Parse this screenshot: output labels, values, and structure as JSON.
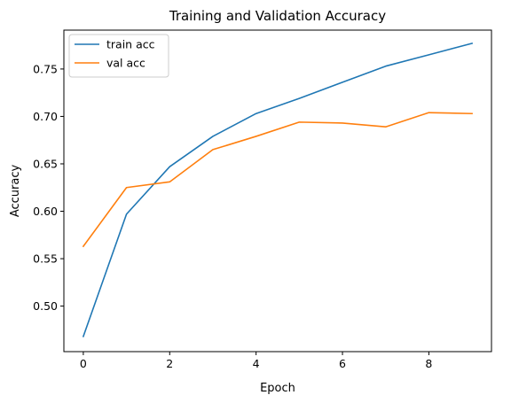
{
  "chart_data": {
    "type": "line",
    "title": "Training and Validation Accuracy",
    "xlabel": "Epoch",
    "ylabel": "Accuracy",
    "x": [
      0,
      1,
      2,
      3,
      4,
      5,
      6,
      7,
      8,
      9
    ],
    "xlim": [
      -0.45,
      9.45
    ],
    "ylim": [
      0.452,
      0.791
    ],
    "xticks": [
      0,
      2,
      4,
      6,
      8
    ],
    "yticks": [
      0.5,
      0.55,
      0.6,
      0.65,
      0.7,
      0.75
    ],
    "xtick_labels": [
      "0",
      "2",
      "4",
      "6",
      "8"
    ],
    "ytick_labels": [
      "0.50",
      "0.55",
      "0.60",
      "0.65",
      "0.70",
      "0.75"
    ],
    "grid": false,
    "legend_position": "top-left",
    "series": [
      {
        "name": "train acc",
        "color": "#1f77b4",
        "values": [
          0.468,
          0.597,
          0.647,
          0.679,
          0.703,
          0.719,
          0.736,
          0.753,
          0.765,
          0.777
        ]
      },
      {
        "name": "val acc",
        "color": "#ff7f0e",
        "values": [
          0.563,
          0.625,
          0.631,
          0.665,
          0.679,
          0.694,
          0.693,
          0.689,
          0.704,
          0.703
        ]
      }
    ]
  }
}
